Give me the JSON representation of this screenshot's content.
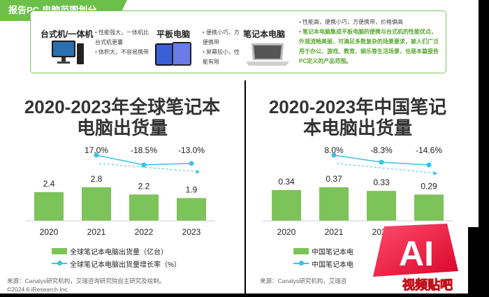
{
  "header": {
    "title": "报告PC-电脑范围划分"
  },
  "categories": [
    {
      "title": "台式机/一体机",
      "desc": [
        "性能强大，一体机比台式机更囊",
        "体积大，不容易携带"
      ]
    },
    {
      "title": "平板电脑",
      "desc": [
        "便携小巧、方便携带",
        "屏幕较小，性能有限"
      ]
    },
    {
      "title": "笔记本电脑",
      "desc": [
        "性能高，便携小巧，方便携带，价格偏高"
      ]
    }
  ],
  "definition": "笔记本电脑集成平板电脑的便携与台式机的性能优点，外观流畅美丽，可满足多数复杂的场景要求，被人们广泛用于办公、游戏、教育、娱乐等生活场景，也是本篇报告PC定义的产品范围。",
  "chart_data": [
    {
      "type": "bar",
      "title": "2020-2023年全球笔记本电脑出货量",
      "categories": [
        "2020",
        "2021",
        "2022",
        "2023"
      ],
      "series": [
        {
          "name": "全球笔记本电脑出货量（亿台）",
          "values": [
            2.4,
            2.8,
            2.2,
            1.9
          ],
          "labels": [
            "2.4",
            "2.8",
            "2.2",
            "1.9"
          ]
        },
        {
          "name": "全球笔记本电脑出货量增长率（%）",
          "type": "line",
          "values": [
            null,
            17.0,
            -18.5,
            -13.0
          ],
          "labels": [
            "",
            "17.0%",
            "-18.5%",
            "-13.0%"
          ]
        }
      ],
      "legend": "bottom",
      "colors": {
        "bar": "#7cc35a",
        "line": "#3ec0e8"
      }
    },
    {
      "type": "bar",
      "title": "2020-2023年中国笔记本电脑出货量",
      "categories": [
        "2020",
        "2021",
        "2022",
        "2023"
      ],
      "series": [
        {
          "name": "中国笔记本电",
          "values": [
            0.34,
            0.37,
            0.33,
            0.29
          ],
          "labels": [
            "0.34",
            "0.37",
            "0.33",
            "0.29"
          ]
        },
        {
          "name": "中国笔记本电",
          "type": "line",
          "values": [
            null,
            8.0,
            -8.3,
            -14.6
          ],
          "labels": [
            "",
            "8.0%",
            "-8.3%",
            "-14.6%"
          ]
        }
      ],
      "legend": "bottom",
      "colors": {
        "bar": "#7cc35a",
        "line": "#3ec0e8"
      }
    }
  ],
  "source_left": "来源：Canalys研究机构，艾瑞咨询研究院自主研究及绘制。",
  "copyright": "©2024.6 iResearch Inc.",
  "source_right": "来源：Canalys研究机构，艾瑞咨",
  "watermark": {
    "big": "AI",
    "small": "视频贴吧"
  }
}
